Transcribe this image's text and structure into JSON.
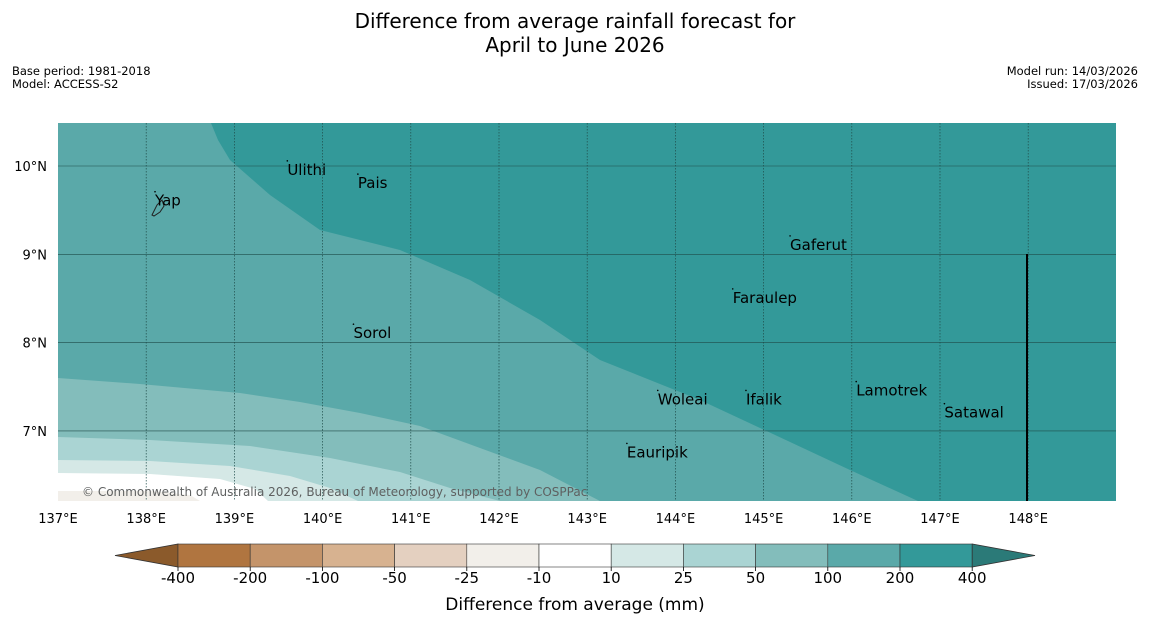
{
  "title": {
    "line1": "Difference from average rainfall forecast for",
    "line2": "April to June 2026"
  },
  "meta": {
    "base_period": "Base period: 1981-2018",
    "model": "Model: ACCESS-S2",
    "model_run": "Model run: 14/03/2026",
    "issued": "Issued: 17/03/2026"
  },
  "map": {
    "lon_labels": [
      "137°E",
      "138°E",
      "139°E",
      "140°E",
      "141°E",
      "142°E",
      "143°E",
      "144°E",
      "145°E",
      "146°E",
      "147°E",
      "148°E"
    ],
    "lat_labels": [
      "10°N",
      "9°N",
      "8°N",
      "7°N"
    ],
    "places": [
      {
        "name": "Ulithi",
        "lon": 139.6,
        "lat": 9.9
      },
      {
        "name": "Pais",
        "lon": 140.4,
        "lat": 9.75
      },
      {
        "name": "Yap",
        "lon": 138.1,
        "lat": 9.55
      },
      {
        "name": "Gaferut",
        "lon": 145.3,
        "lat": 9.05
      },
      {
        "name": "Faraulep",
        "lon": 144.65,
        "lat": 8.45
      },
      {
        "name": "Sorol",
        "lon": 140.35,
        "lat": 8.05
      },
      {
        "name": "Lamotrek",
        "lon": 146.05,
        "lat": 7.4
      },
      {
        "name": "Woleai",
        "lon": 143.8,
        "lat": 7.3
      },
      {
        "name": "Ifalik",
        "lon": 144.8,
        "lat": 7.3
      },
      {
        "name": "Satawal",
        "lon": 147.05,
        "lat": 7.15
      },
      {
        "name": "Eauripik",
        "lon": 143.45,
        "lat": 6.7
      }
    ],
    "copyright": "© Commonwealth of Australia 2026, Bureau of Meteorology, supported by COSPPac"
  },
  "colorbar": {
    "colors": [
      "#8b5a2b",
      "#b07540",
      "#c4946a",
      "#d7b290",
      "#e4d0c0",
      "#f2efea",
      "#ffffff",
      "#d5e8e6",
      "#aad4d3",
      "#83bdbb",
      "#5aa9a9",
      "#339999",
      "#2b7a78"
    ],
    "ticks": [
      "-400",
      "-200",
      "-100",
      "-50",
      "-25",
      "-10",
      "10",
      "25",
      "50",
      "100",
      "200",
      "400"
    ],
    "label": "Difference from average (mm)"
  }
}
